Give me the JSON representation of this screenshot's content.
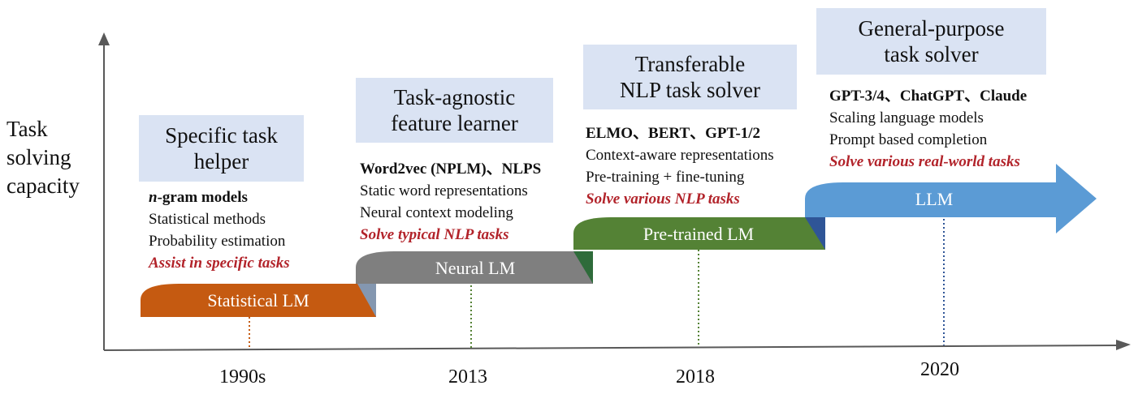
{
  "axis": {
    "y_label": [
      "Task",
      "solving",
      "capacity"
    ]
  },
  "stages": [
    {
      "label": "Statistical LM",
      "year": "1990s",
      "title": [
        "Specific task",
        "helper"
      ],
      "models": "-gram models",
      "models_italic_prefix": "n",
      "features": [
        "Statistical methods",
        "Probability estimation"
      ],
      "capability": "Assist in specific tasks",
      "color": "#c55a11",
      "shade": "#8497b0"
    },
    {
      "label": "Neural LM",
      "year": "2013",
      "title": [
        "Task-agnostic",
        "feature learner"
      ],
      "models": "Word2vec (NPLM)、NLPS",
      "features": [
        "Static word representations",
        "Neural context modeling"
      ],
      "capability": "Solve typical NLP tasks",
      "color": "#7f7f7f",
      "shade": "#2e6b3a"
    },
    {
      "label": "Pre-trained LM",
      "year": "2018",
      "title": [
        "Transferable",
        "NLP task solver"
      ],
      "models": "ELMO、BERT、GPT-1/2",
      "features": [
        "Context-aware representations",
        "Pre-training + fine-tuning"
      ],
      "capability": "Solve various NLP tasks",
      "color": "#548235",
      "shade": "#2f5597"
    },
    {
      "label": "LLM",
      "year": "2020",
      "title": [
        "General-purpose",
        "task solver"
      ],
      "models": "GPT-3/4、ChatGPT、Claude",
      "features": [
        "Scaling language models",
        "Prompt based completion"
      ],
      "capability": "Solve various real-world tasks",
      "color": "#5b9bd5",
      "shade": ""
    }
  ],
  "colors": {
    "axis": "#595959",
    "title_box": "#dae3f3",
    "capability_text": "#b2232a",
    "dotted_1990s": "#c55a11",
    "dotted_2013": "#548235",
    "dotted_2018": "#548235",
    "dotted_2020": "#2f5597"
  }
}
